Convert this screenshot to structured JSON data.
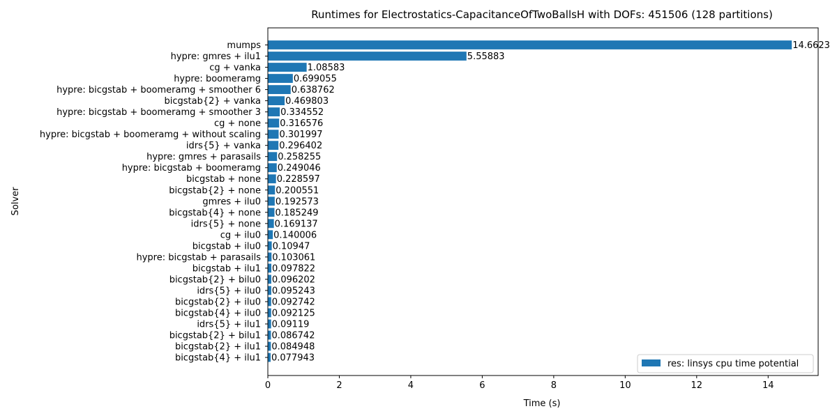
{
  "chart_data": {
    "type": "bar",
    "orientation": "horizontal",
    "title": "Runtimes for Electrostatics-CapacitanceOfTwoBallsH with DOFs: 451506 (128 partitions)",
    "xlabel": "Time (s)",
    "ylabel": "Solver",
    "xlim": [
      0,
      15.4
    ],
    "xticks": [
      "0",
      "2",
      "4",
      "6",
      "8",
      "10",
      "12",
      "14"
    ],
    "legend_position": "lower-right",
    "grid": false,
    "bar_color": "#1f77b4",
    "categories": [
      "mumps",
      "hypre: gmres + ilu1",
      "cg + vanka",
      "hypre: boomeramg",
      "hypre: bicgstab + boomeramg + smoother 6",
      "bicgstab{2} + vanka",
      "hypre: bicgstab + boomeramg + smoother 3",
      "cg + none",
      "hypre: bicgstab + boomeramg + without scaling",
      "idrs{5} + vanka",
      "hypre: gmres + parasails",
      "hypre: bicgstab + boomeramg",
      "bicgstab + none",
      "bicgstab{2} + none",
      "gmres + ilu0",
      "bicgstab{4} + none",
      "idrs{5} + none",
      "cg + ilu0",
      "bicgstab + ilu0",
      "hypre: bicgstab + parasails",
      "bicgstab + ilu1",
      "bicgstab{2} + bilu0",
      "idrs{5} + ilu0",
      "bicgstab{2} + ilu0",
      "bicgstab{4} + ilu0",
      "idrs{5} + ilu1",
      "bicgstab{2} + bilu1",
      "bicgstab{2} + ilu1",
      "bicgstab{4} + ilu1"
    ],
    "series": [
      {
        "name": "res: linsys cpu time potential",
        "values": [
          14.6623,
          5.55883,
          1.08583,
          0.699055,
          0.638762,
          0.469803,
          0.334552,
          0.316576,
          0.301997,
          0.296402,
          0.258255,
          0.249046,
          0.228597,
          0.200551,
          0.192573,
          0.185249,
          0.169137,
          0.140006,
          0.10947,
          0.103061,
          0.097822,
          0.096202,
          0.095243,
          0.092742,
          0.092125,
          0.09119,
          0.086742,
          0.084948,
          0.077943
        ],
        "value_labels": [
          "14.6623",
          "5.55883",
          "1.08583",
          "0.699055",
          "0.638762",
          "0.469803",
          "0.334552",
          "0.316576",
          "0.301997",
          "0.296402",
          "0.258255",
          "0.249046",
          "0.228597",
          "0.200551",
          "0.192573",
          "0.185249",
          "0.169137",
          "0.140006",
          "0.10947",
          "0.103061",
          "0.097822",
          "0.096202",
          "0.095243",
          "0.092742",
          "0.092125",
          "0.09119",
          "0.086742",
          "0.084948",
          "0.077943"
        ]
      }
    ]
  }
}
